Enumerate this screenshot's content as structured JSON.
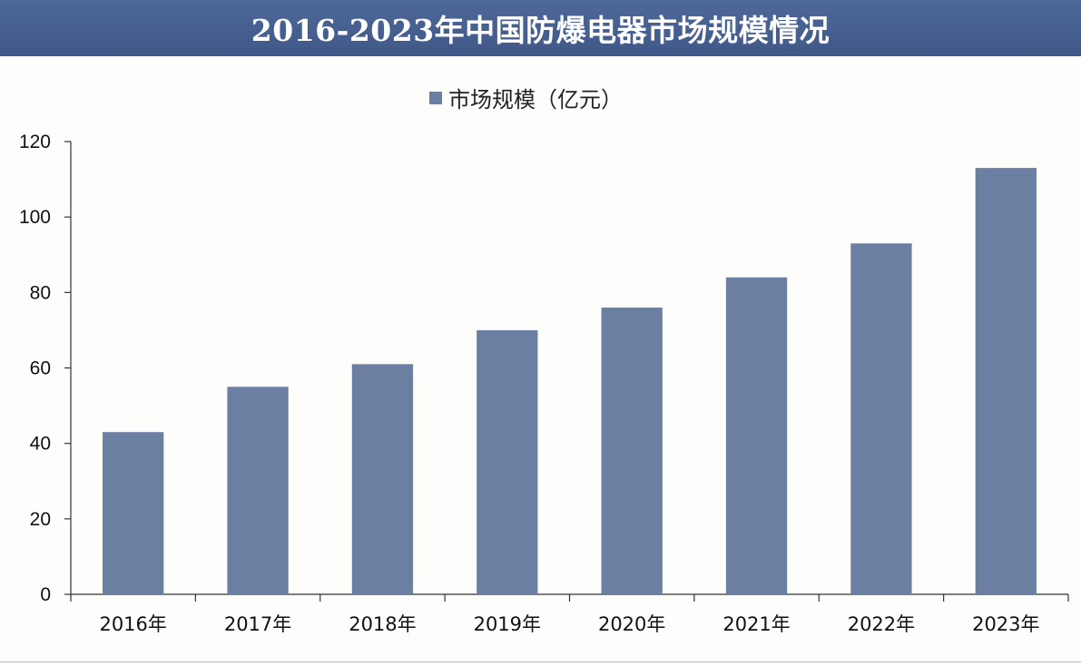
{
  "chart_data": {
    "type": "bar",
    "title": "2016-2023年中国防爆电器市场规模情况",
    "categories": [
      "2016年",
      "2017年",
      "2018年",
      "2019年",
      "2020年",
      "2021年",
      "2022年",
      "2023年"
    ],
    "series": [
      {
        "name": "市场规模（亿元）",
        "values": [
          43,
          55,
          61,
          70,
          76,
          84,
          93,
          113
        ],
        "color": "#6b7fa3"
      }
    ],
    "xlabel": "",
    "ylabel": "",
    "ylim": [
      0,
      120
    ],
    "yticks": [
      0,
      20,
      40,
      60,
      80,
      100,
      120
    ],
    "legend_position": "top-center",
    "grid": false
  },
  "colors": {
    "title_bar": "#445d8e",
    "title_text": "#ffffff",
    "bar": "#6b7fa3",
    "axis": "#333333"
  }
}
